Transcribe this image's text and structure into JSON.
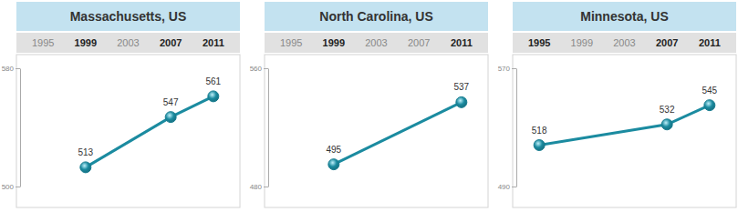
{
  "chart_data": [
    {
      "type": "line",
      "title": "Massachusetts, US",
      "xticks": [
        1995,
        1999,
        2003,
        2007,
        2011
      ],
      "xlim": [
        1992.5,
        2013.5
      ],
      "ylim": [
        500,
        580
      ],
      "yticks": [
        500,
        580
      ],
      "data_labels": true,
      "series": [
        {
          "x": [
            1999,
            2007,
            2011
          ],
          "values": [
            513,
            547,
            561
          ],
          "color": "#1b8ba0",
          "marker": "circle"
        }
      ]
    },
    {
      "type": "line",
      "title": "North Carolina, US",
      "xticks": [
        1995,
        1999,
        2003,
        2007,
        2011
      ],
      "xlim": [
        1992.5,
        2013.5
      ],
      "ylim": [
        480,
        560
      ],
      "yticks": [
        480,
        560
      ],
      "data_labels": true,
      "series": [
        {
          "x": [
            1999,
            2011
          ],
          "values": [
            495,
            537
          ],
          "color": "#1b8ba0",
          "marker": "circle"
        }
      ]
    },
    {
      "type": "line",
      "title": "Minnesota, US",
      "xticks": [
        1995,
        1999,
        2003,
        2007,
        2011
      ],
      "xlim": [
        1992.5,
        2013.5
      ],
      "ylim": [
        490,
        570
      ],
      "yticks": [
        490,
        570
      ],
      "data_labels": true,
      "series": [
        {
          "x": [
            1995,
            2007,
            2011
          ],
          "values": [
            518,
            532,
            545
          ],
          "color": "#1b8ba0",
          "marker": "circle"
        }
      ]
    }
  ]
}
